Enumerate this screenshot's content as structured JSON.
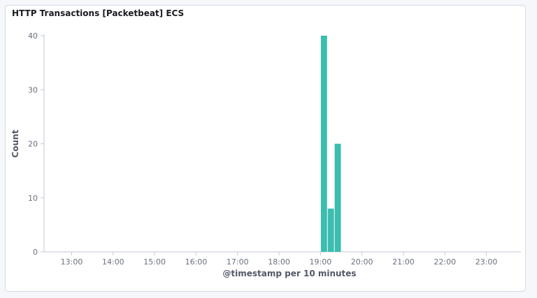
{
  "panel": {
    "title": "HTTP Transactions [Packetbeat] ECS"
  },
  "colors": {
    "bar": "#3bbdb0",
    "axis_line": "#c5cad3",
    "tick_text": "#69707d",
    "title_text": "#1a1c21"
  },
  "chart_data": {
    "type": "bar",
    "title": "HTTP Transactions [Packetbeat] ECS",
    "xlabel": "@timestamp per 10 minutes",
    "ylabel": "Count",
    "ylim": [
      0,
      40
    ],
    "yticks": [
      0,
      10,
      20,
      30,
      40
    ],
    "xlim": [
      "12:20",
      "23:50"
    ],
    "xticks": [
      "13:00",
      "14:00",
      "15:00",
      "16:00",
      "17:00",
      "18:00",
      "19:00",
      "20:00",
      "21:00",
      "22:00",
      "23:00"
    ],
    "bar_interval_minutes": 10,
    "grid": false,
    "legend": "none",
    "series": [
      {
        "values": [
          {
            "x": "19:00",
            "y": 40
          },
          {
            "x": "19:10",
            "y": 8
          },
          {
            "x": "19:20",
            "y": 20
          }
        ]
      }
    ]
  }
}
